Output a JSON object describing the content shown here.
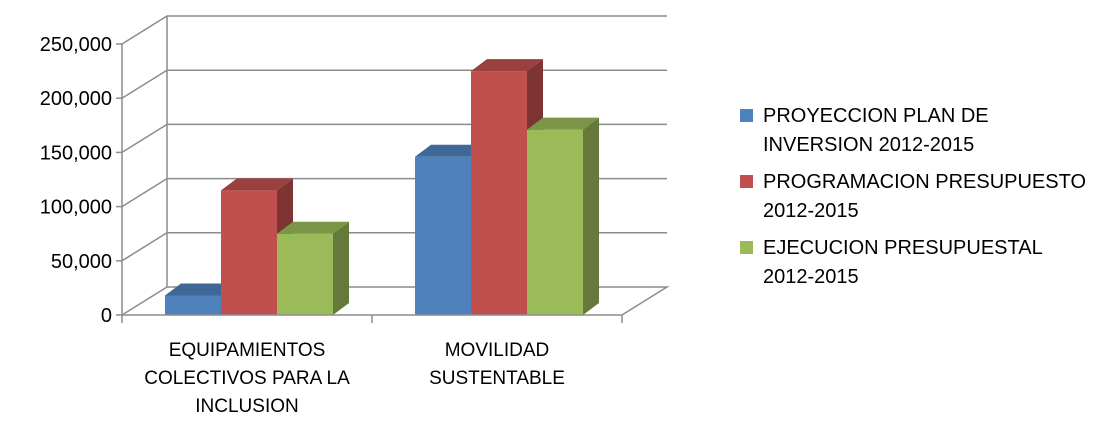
{
  "chart_data": {
    "type": "bar",
    "title": "",
    "xlabel": "",
    "ylabel": "",
    "categories": [
      "EQUIPAMIENTOS\nCOLECTIVOS PARA LA\nINCLUSION",
      "MOVILIDAD\nSUSTENTABLE"
    ],
    "series": [
      {
        "name": "PROYECCION PLAN DE\nINVERSION 2012-2015",
        "color": "#4F81BD",
        "values": [
          18000,
          146000
        ]
      },
      {
        "name": "PROGRAMACION PRESUPUESTO\n2012-2015",
        "color": "#C0504D",
        "values": [
          115000,
          225000
        ]
      },
      {
        "name": "EJECUCION PRESUPUESTAL\n2012-2015",
        "color": "#9BBB59",
        "values": [
          75000,
          171000
        ]
      }
    ],
    "ylim": [
      0,
      250000
    ],
    "y_ticks": [
      "0",
      "50,000",
      "100,000",
      "150,000",
      "200,000",
      "250,000"
    ],
    "y_tick_values": [
      0,
      50000,
      100000,
      150000,
      200000,
      250000
    ],
    "grid": true,
    "style": "3d-clustered-column",
    "legend_position": "right"
  }
}
